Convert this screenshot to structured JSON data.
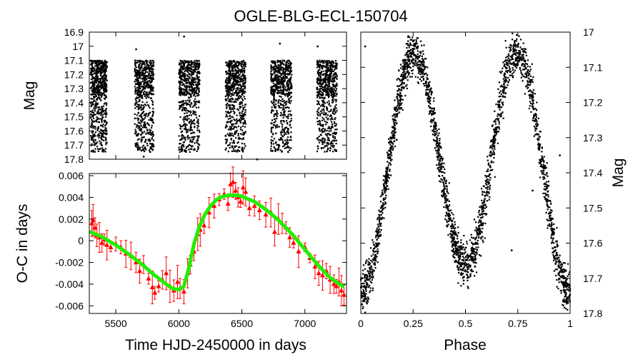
{
  "title": "OGLE-BLG-ECL-150704",
  "colors": {
    "points": "#000000",
    "oc_points": "#ff0000",
    "fit": "#22ee00"
  },
  "chart_data": [
    {
      "id": "lightcurve-time",
      "type": "scatter",
      "title": "",
      "xlabel": "",
      "ylabel": "Mag",
      "xlim": [
        5290,
        7330
      ],
      "ylim": [
        17.8,
        16.9
      ],
      "y_inverted": true,
      "yticks": [
        "16.9",
        "17",
        "17.1",
        "17.2",
        "17.3",
        "17.4",
        "17.5",
        "17.6",
        "17.7",
        "17.8"
      ],
      "xticks": [],
      "seasons": [
        {
          "start": 5300,
          "end": 5430
        },
        {
          "start": 5650,
          "end": 5800
        },
        {
          "start": 6000,
          "end": 6165
        },
        {
          "start": 6370,
          "end": 6530
        },
        {
          "start": 6730,
          "end": 6895
        },
        {
          "start": 7095,
          "end": 7255
        }
      ],
      "mag_range": [
        17.1,
        17.75
      ],
      "outliers": [
        [
          5660,
          17.02
        ],
        [
          6040,
          16.93
        ],
        [
          6800,
          16.98
        ],
        [
          7100,
          17.0
        ],
        [
          5720,
          17.78
        ],
        [
          6620,
          17.8
        ]
      ]
    },
    {
      "id": "oc-diagram",
      "type": "scatter",
      "title": "",
      "xlabel": "Time HJD-2450000 in days",
      "ylabel": "O-C in days",
      "xlim": [
        5290,
        7330
      ],
      "ylim": [
        -0.0067,
        0.0062
      ],
      "xticks": [
        "5500",
        "6000",
        "6500",
        "7000"
      ],
      "xtick_values": [
        5500,
        6000,
        6500,
        7000
      ],
      "yticks": [
        "0.006",
        "0.004",
        "0.002",
        "0",
        "-0.002",
        "-0.004",
        "-0.006"
      ],
      "ytick_values": [
        0.006,
        0.004,
        0.002,
        0,
        -0.002,
        -0.004,
        -0.006
      ],
      "fit": {
        "x": [
          5300,
          5400,
          5500,
          5600,
          5700,
          5800,
          5900,
          5950,
          6000,
          6040,
          6080,
          6120,
          6160,
          6200,
          6250,
          6300,
          6350,
          6400,
          6450,
          6500,
          6600,
          6700,
          6800,
          6900,
          7000,
          7100,
          7200,
          7300
        ],
        "y": [
          0.0008,
          0.0003,
          -0.0004,
          -0.0012,
          -0.0021,
          -0.0031,
          -0.004,
          -0.0044,
          -0.0045,
          -0.0042,
          -0.0025,
          -0.0003,
          0.0012,
          0.0023,
          0.0032,
          0.0038,
          0.0041,
          0.0042,
          0.0042,
          0.0041,
          0.0036,
          0.0028,
          0.0018,
          0.0006,
          -0.0008,
          -0.0022,
          -0.0034,
          -0.0042
        ]
      },
      "points_x": [
        5310,
        5320,
        5335,
        5350,
        5370,
        5390,
        5410,
        5430,
        5460,
        5500,
        5540,
        5580,
        5620,
        5660,
        5690,
        5720,
        5760,
        5790,
        5810,
        5840,
        5870,
        5900,
        5930,
        5960,
        5990,
        6010,
        6040,
        6070,
        6090,
        6120,
        6150,
        6170,
        6200,
        6240,
        6280,
        6320,
        6360,
        6390,
        6410,
        6430,
        6450,
        6470,
        6490,
        6510,
        6530,
        6560,
        6600,
        6640,
        6690,
        6730,
        6760,
        6790,
        6820,
        6850,
        6880,
        6910,
        6950,
        7000,
        7040,
        7080,
        7110,
        7140,
        7170,
        7200,
        7230,
        7250,
        7270,
        7290,
        7310
      ],
      "points_y": [
        0.0016,
        0.0019,
        0.0012,
        0.0005,
        0.0003,
        -0.0002,
        0.0001,
        -0.0004,
        -0.0006,
        -0.0003,
        -0.0006,
        -0.0012,
        -0.0014,
        -0.002,
        -0.0028,
        -0.0022,
        -0.0035,
        -0.0043,
        -0.0048,
        -0.0042,
        -0.0036,
        -0.003,
        -0.0042,
        -0.0046,
        -0.0038,
        -0.0044,
        -0.0047,
        -0.003,
        -0.0022,
        -0.001,
        0.0006,
        0.001,
        0.0014,
        0.0026,
        0.0032,
        0.0038,
        0.0043,
        0.0034,
        0.0052,
        0.0054,
        0.0046,
        0.004,
        0.0036,
        0.0049,
        0.0045,
        0.003,
        0.0032,
        0.0028,
        0.0024,
        0.0026,
        0.0008,
        0.002,
        0.0016,
        0.0012,
        0.0003,
        -0.0002,
        -0.001,
        -0.0006,
        -0.0016,
        -0.0024,
        -0.003,
        -0.0032,
        -0.0028,
        -0.0036,
        -0.004,
        -0.0042,
        -0.0038,
        -0.0046,
        -0.005
      ]
    },
    {
      "id": "phased-lightcurve",
      "type": "scatter",
      "title": "",
      "xlabel": "Phase",
      "ylabel": "Mag",
      "xlim": [
        0,
        1
      ],
      "ylim": [
        17.8,
        17.0
      ],
      "y_inverted": true,
      "xticks": [
        "0",
        "0.25",
        "0.5",
        "0.75",
        "1"
      ],
      "xtick_values": [
        0,
        0.25,
        0.5,
        0.75,
        1
      ],
      "yticks": [
        "17",
        "17.1",
        "17.2",
        "17.3",
        "17.4",
        "17.5",
        "17.6",
        "17.7",
        "17.8"
      ],
      "ytick_values": [
        17.0,
        17.1,
        17.2,
        17.3,
        17.4,
        17.5,
        17.6,
        17.7,
        17.8
      ],
      "model": {
        "mean_mag": 17.38,
        "amp_primary": 0.32,
        "amp_secondary": 0.04,
        "scatter": 0.07
      },
      "outliers": [
        [
          0.02,
          17.04
        ],
        [
          0.82,
          17.45
        ],
        [
          0.88,
          17.38
        ],
        [
          0.95,
          17.35
        ],
        [
          0.72,
          17.62
        ]
      ]
    }
  ]
}
